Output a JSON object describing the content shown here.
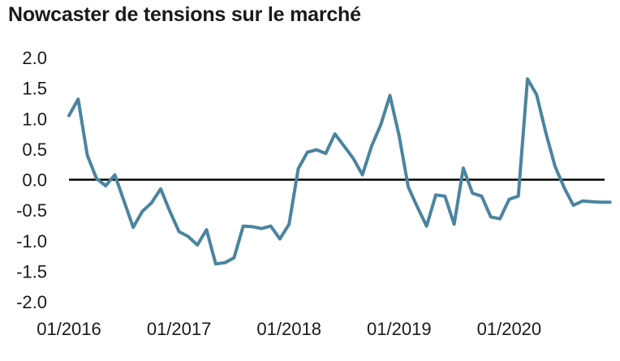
{
  "chart_data": {
    "type": "line",
    "title": "Nowcaster de tensions sur le marché",
    "xlabel": "",
    "ylabel": "",
    "ylim": [
      -2.0,
      2.0
    ],
    "yticks": [
      "2.0",
      "1.5",
      "1.0",
      "0.5",
      "0.0",
      "-0.5",
      "-1.0",
      "-1.5",
      "-2.0"
    ],
    "xtick_labels": [
      "01/2016",
      "01/2017",
      "01/2018",
      "01/2019",
      "01/2020"
    ],
    "zero_line": true,
    "grid": false,
    "legend": "none",
    "series": [
      {
        "color": "#4a84a0",
        "x": [
          "01/2016",
          "02/2016",
          "03/2016",
          "04/2016",
          "05/2016",
          "06/2016",
          "07/2016",
          "08/2016",
          "09/2016",
          "10/2016",
          "11/2016",
          "12/2016",
          "01/2017",
          "02/2017",
          "03/2017",
          "04/2017",
          "05/2017",
          "06/2017",
          "07/2017",
          "08/2017",
          "09/2017",
          "10/2017",
          "11/2017",
          "12/2017",
          "01/2018",
          "02/2018",
          "03/2018",
          "04/2018",
          "05/2018",
          "06/2018",
          "07/2018",
          "08/2018",
          "09/2018",
          "10/2018",
          "11/2018",
          "12/2018",
          "01/2019",
          "02/2019",
          "03/2019",
          "04/2019",
          "05/2019",
          "06/2019",
          "07/2019",
          "08/2019",
          "09/2019",
          "10/2019",
          "11/2019",
          "12/2019",
          "01/2020",
          "02/2020",
          "03/2020",
          "04/2020",
          "05/2020",
          "06/2020",
          "07/2020",
          "08/2020",
          "09/2020",
          "10/2020",
          "11/2020",
          "12/2020"
        ],
        "values": [
          1.05,
          1.32,
          0.4,
          0.02,
          -0.1,
          0.08,
          -0.35,
          -0.78,
          -0.52,
          -0.38,
          -0.15,
          -0.52,
          -0.85,
          -0.93,
          -1.07,
          -0.82,
          -1.38,
          -1.36,
          -1.28,
          -0.76,
          -0.77,
          -0.8,
          -0.76,
          -0.97,
          -0.73,
          0.18,
          0.45,
          0.49,
          0.43,
          0.75,
          0.55,
          0.35,
          0.08,
          0.55,
          0.9,
          1.38,
          0.72,
          -0.12,
          -0.45,
          -0.76,
          -0.25,
          -0.27,
          -0.73,
          0.19,
          -0.22,
          -0.27,
          -0.61,
          -0.64,
          -0.32,
          -0.27,
          1.65,
          1.39,
          0.77,
          0.22,
          -0.13,
          -0.42,
          -0.35,
          -0.36,
          -0.37,
          -0.37
        ]
      }
    ]
  }
}
